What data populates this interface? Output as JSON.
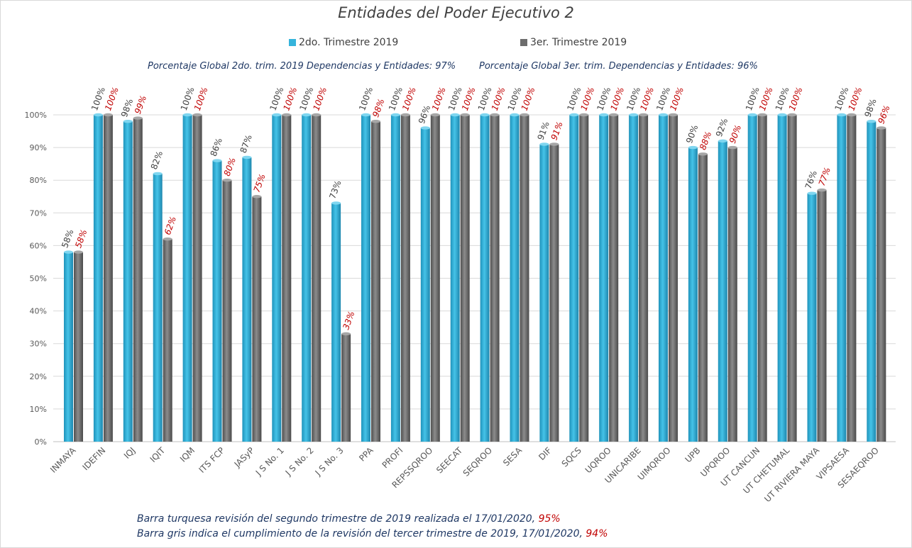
{
  "chart_data": {
    "type": "bar",
    "title": "Entidades del Poder Ejecutivo 2",
    "categories": [
      "INMAYA",
      "IDEFIN",
      "IQJ",
      "IQIT",
      "IQM",
      "ITS FCP",
      "JASyP",
      "J S No. 1",
      "J S No. 2",
      "J S No. 3",
      "PPA",
      "PROFI",
      "REPSSQROO",
      "SEECAT",
      "SEQROO",
      "SESA",
      "DIF",
      "SQCS",
      "UQROO",
      "UNICARIBE",
      "UIMQROO",
      "UPB",
      "UPQROO",
      "UT CANCUN",
      "UT CHETUMAL",
      "UT RIVIERA MAYA",
      "VIPSAESA",
      "SESAEQROO"
    ],
    "series": [
      {
        "name": "2do. Trimestre 2019",
        "color": "#35b4dc",
        "values": [
          58,
          100,
          98,
          82,
          100,
          86,
          87,
          100,
          100,
          73,
          100,
          100,
          96,
          100,
          100,
          100,
          91,
          100,
          100,
          100,
          100,
          90,
          92,
          100,
          100,
          76,
          100,
          98
        ],
        "labels": [
          "58%",
          "100%",
          "98%",
          "82%",
          "100%",
          "86%",
          "87%",
          "100%",
          "100%",
          "73%",
          "100%",
          "100%",
          "96%",
          "100%",
          "100%",
          "100%",
          "91%",
          "100%",
          "100%",
          "100%",
          "100%",
          "90%",
          "92%",
          "100%",
          "100%",
          "76%",
          "100%",
          "98%"
        ]
      },
      {
        "name": "3er. Trimestre 2019",
        "color": "#7f7f7f",
        "values": [
          58,
          100,
          99,
          62,
          100,
          80,
          75,
          100,
          100,
          33,
          98,
          100,
          100,
          100,
          100,
          100,
          91,
          100,
          100,
          100,
          100,
          88,
          90,
          100,
          100,
          77,
          100,
          96
        ],
        "labels": [
          "58%",
          "100%",
          "99%",
          "62%",
          "100%",
          "80%",
          "75%",
          "100%",
          "100%",
          "33%",
          "98%",
          "100%",
          "100%",
          "100%",
          "100%",
          "100%",
          "91%",
          "100%",
          "100%",
          "100%",
          "100%",
          "88%",
          "90%",
          "100%",
          "100%",
          "77%",
          "100%",
          "96%"
        ]
      }
    ],
    "ylim": [
      0,
      100
    ],
    "yticks": [
      "0%",
      "10%",
      "20%",
      "30%",
      "40%",
      "50%",
      "60%",
      "70%",
      "80%",
      "90%",
      "100%"
    ],
    "grid": true,
    "legend": "top-center"
  },
  "colors": {
    "series1_label": "#404040",
    "series2_label": "#c00000",
    "accent_text": "#1f3864",
    "highlight": "#c00000"
  },
  "global_2do": "Porcentaje Global 2do. trim.  2019 Dependencias y Entidades: 97%",
  "global_3er": "Porcentaje Global  3er. trim. Dependencias y Entidades: 96%",
  "note1": {
    "text": "Barra turquesa  revisión  del  segundo  trimestre  de  2019  realizada  el   17/01/2020,",
    "value": "95%"
  },
  "note2": {
    "text": "Barra gris indica  el  cumplimiento   de  la  revisión  del  tercer  trimestre  de  2019,   17/01/2020,",
    "value": "94%"
  }
}
